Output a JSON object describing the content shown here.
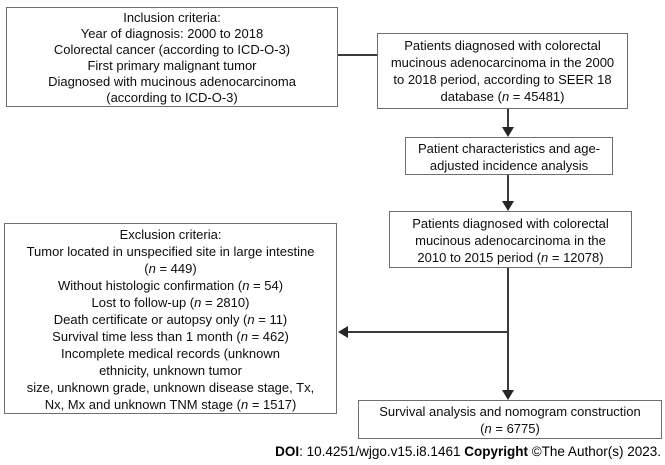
{
  "figure": {
    "title": "Patient selection flowchart (SEER colorectal mucinous adenocarcinoma study)",
    "colors": {
      "background": "#ffffff",
      "box_border": "#6e6e6e",
      "line": "#3a3a3a",
      "arrow": "#262626",
      "text": "#0d0d0d"
    },
    "boxes": {
      "inclusion": {
        "lines": [
          [
            "Inclusion criteria:"
          ],
          [
            "Year of diagnosis: 2000 to 2018"
          ],
          [
            "Colorectal cancer (according to ICD-O-3)"
          ],
          [
            "First primary malignant tumor"
          ],
          [
            "Diagnosed with mucinous adenocarcinoma"
          ],
          [
            "(according to ICD-O-3)"
          ]
        ]
      },
      "seer_cohort": {
        "n": 45481,
        "lines": [
          [
            "Patients diagnosed with colorectal"
          ],
          [
            "mucinous adenocarcinoma in the 2000"
          ],
          [
            "to 2018 period, according to SEER 18"
          ],
          [
            "database (",
            {
              "t": "n",
              "i": true
            },
            " = 45481)"
          ]
        ]
      },
      "characteristics": {
        "lines": [
          [
            "Patient characteristics and age-"
          ],
          [
            "adjusted incidence analysis"
          ]
        ]
      },
      "cohort_2010_2015": {
        "n": 12078,
        "lines": [
          [
            "Patients diagnosed with colorectal"
          ],
          [
            "mucinous adenocarcinoma in the"
          ],
          [
            "2010 to 2015 period (",
            {
              "t": "n",
              "i": true
            },
            " = 12078)"
          ]
        ]
      },
      "exclusion": {
        "lines": [
          [
            "Exclusion criteria:"
          ],
          [
            "Tumor located in unspecified site in large intestine"
          ],
          [
            "(",
            {
              "t": "n",
              "i": true
            },
            " = 449)"
          ],
          [
            "Without histologic confirmation (",
            {
              "t": "n",
              "i": true
            },
            " = 54)"
          ],
          [
            "Lost to follow-up (",
            {
              "t": "n",
              "i": true
            },
            " = 2810)"
          ],
          [
            "Death certificate or autopsy only (",
            {
              "t": "n",
              "i": true
            },
            " = 11)"
          ],
          [
            "Survival time less than 1 month (",
            {
              "t": "n",
              "i": true
            },
            " = 462)"
          ],
          [
            "Incomplete medical records (unknown"
          ],
          [
            "ethnicity, unknown tumor"
          ],
          [
            "size, unknown grade, unknown disease stage, Tx,"
          ],
          [
            "Nx, Mx and unknown TNM stage (",
            {
              "t": "n",
              "i": true
            },
            " = 1517)"
          ]
        ]
      },
      "survival": {
        "n": 6775,
        "lines": [
          [
            "Survival analysis and nomogram construction"
          ],
          [
            "(",
            {
              "t": "n",
              "i": true
            },
            " = 6775)"
          ]
        ]
      }
    },
    "footer": {
      "segments": [
        {
          "t": "DOI",
          "b": true
        },
        {
          "t": ": 10.4251/wjgo.v15.i8.1461 "
        },
        {
          "t": "Copyright",
          "b": true
        },
        {
          "t": " ©The Author(s) 2023."
        }
      ]
    }
  }
}
